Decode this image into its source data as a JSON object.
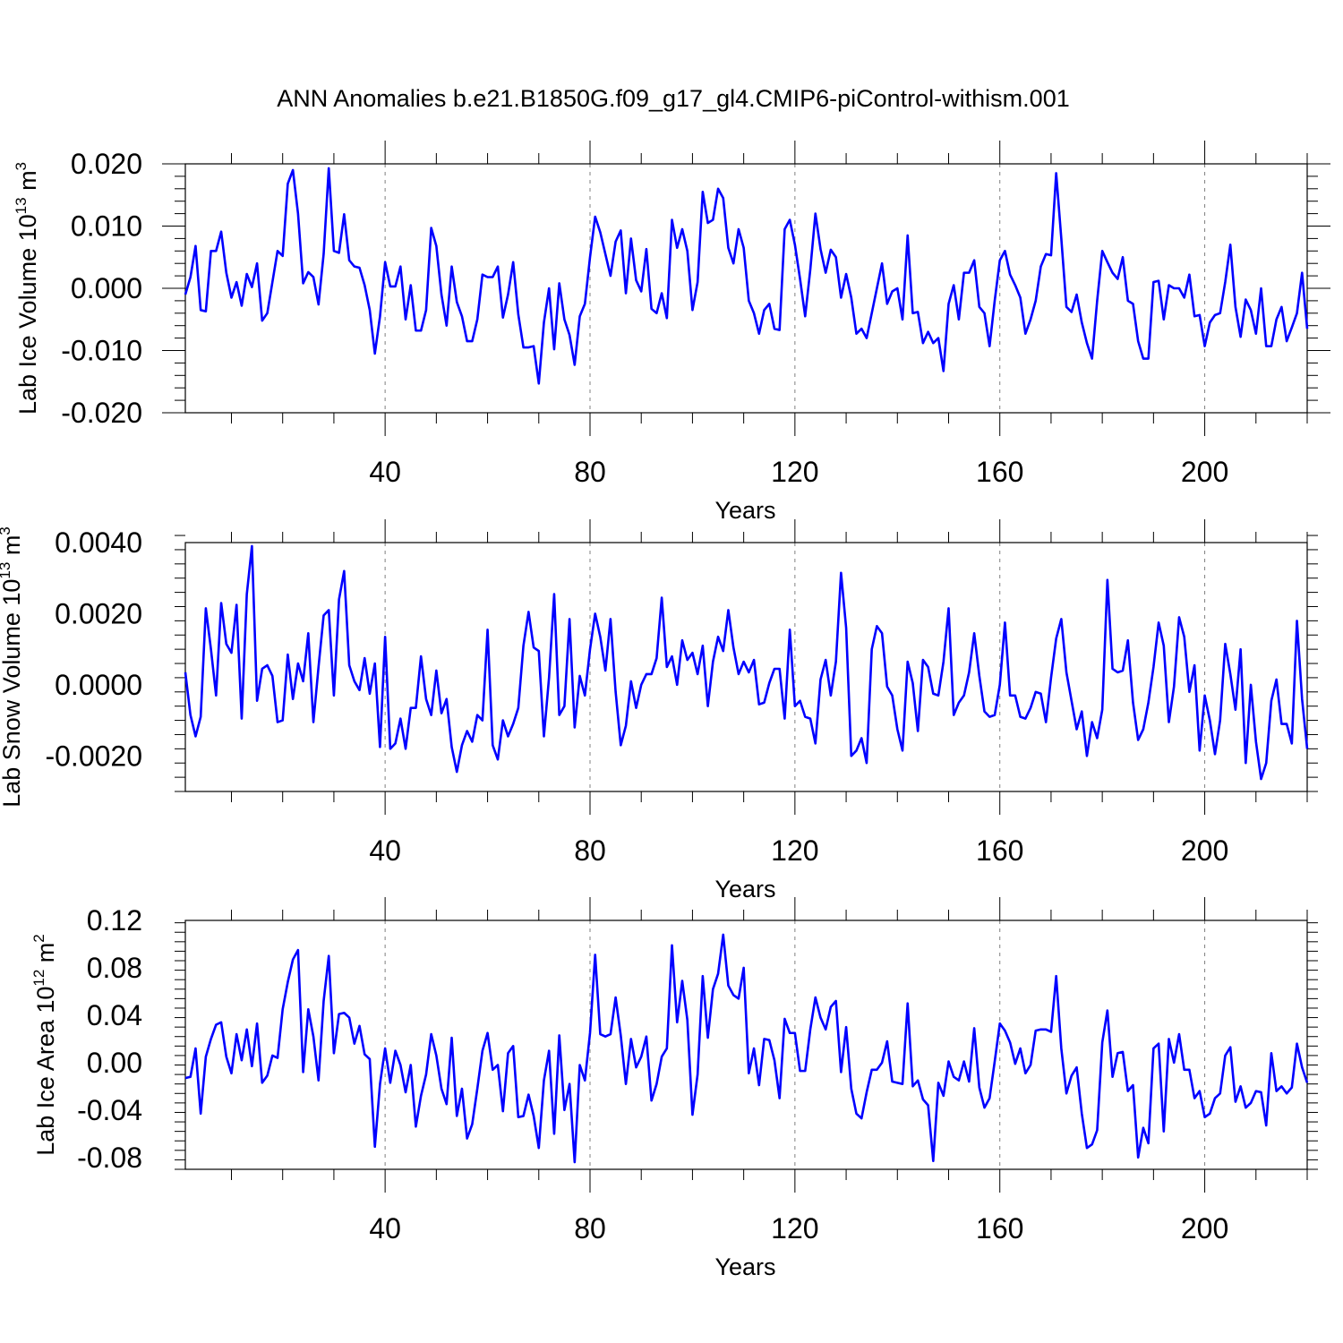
{
  "title": "ANN Anomalies b.e21.B1850G.f09_g17_gl4.CMIP6-piControl-withism.001",
  "colors": {
    "series": "#0000ff",
    "axis": "#000000",
    "grid": "#808080"
  },
  "chart_data": [
    {
      "type": "line",
      "ylabel": "Lab Ice Volume 10^13 m^3",
      "ylabel_main": "Lab Ice Volume 10",
      "ylabel_exp": "13",
      "ylabel_unit": "m",
      "ylabel_unit_exp": "3",
      "xlabel": "Years",
      "xlim": [
        1,
        220
      ],
      "ylim": [
        -0.02,
        0.02
      ],
      "xticks": [
        40,
        80,
        120,
        160,
        200
      ],
      "xtick_labels": [
        "40",
        "80",
        "120",
        "160",
        "200"
      ],
      "yticks": [
        -0.02,
        -0.01,
        0.0,
        0.01,
        0.02
      ],
      "ytick_labels": [
        "-0.020",
        "-0.010",
        "0.000",
        "0.010",
        "0.020"
      ],
      "x_start": 1,
      "values": [
        -0.001,
        0.0018,
        0.0068,
        -0.0035,
        -0.0037,
        0.006,
        0.006,
        0.0091,
        0.0025,
        -0.0015,
        0.001,
        -0.0028,
        0.0023,
        0.0002,
        0.004,
        -0.0052,
        -0.004,
        0.001,
        0.006,
        0.0052,
        0.0168,
        0.019,
        0.012,
        0.0008,
        0.0026,
        0.0018,
        -0.0026,
        0.0055,
        0.0193,
        0.006,
        0.0057,
        0.0119,
        0.0045,
        0.0035,
        0.0033,
        0.0005,
        -0.0035,
        -0.0105,
        -0.0045,
        0.0042,
        0.0003,
        0.0003,
        0.0035,
        -0.005,
        0.0005,
        -0.0068,
        -0.0068,
        -0.0035,
        0.0097,
        0.0068,
        -0.001,
        -0.006,
        0.0035,
        -0.0022,
        -0.0045,
        -0.0085,
        -0.0085,
        -0.005,
        0.0022,
        0.0018,
        0.0018,
        0.0035,
        -0.0047,
        -0.001,
        0.0042,
        -0.0042,
        -0.0095,
        -0.0095,
        -0.0093,
        -0.0153,
        -0.0055,
        0.0,
        -0.0098,
        0.0008,
        -0.005,
        -0.0075,
        -0.0123,
        -0.0045,
        -0.0025,
        0.005,
        0.0115,
        0.009,
        0.0055,
        0.002,
        0.0075,
        0.0093,
        -0.0008,
        0.008,
        0.0013,
        -0.0005,
        0.0063,
        -0.0033,
        -0.004,
        -0.0008,
        -0.0048,
        0.011,
        0.0065,
        0.0095,
        0.006,
        -0.0035,
        0.001,
        0.0155,
        0.0105,
        0.011,
        0.016,
        0.0145,
        0.0065,
        0.004,
        0.0095,
        0.0065,
        -0.002,
        -0.004,
        -0.0073,
        -0.0035,
        -0.0025,
        -0.0065,
        -0.0067,
        0.0095,
        0.011,
        0.007,
        0.0015,
        -0.0045,
        0.003,
        0.012,
        0.0063,
        0.0025,
        0.0062,
        0.005,
        -0.0015,
        0.0023,
        -0.0015,
        -0.0073,
        -0.0065,
        -0.008,
        -0.004,
        0.0,
        0.004,
        -0.0025,
        -0.0005,
        0.0,
        -0.005,
        0.0085,
        -0.004,
        -0.0038,
        -0.0088,
        -0.007,
        -0.0088,
        -0.008,
        -0.0133,
        -0.0025,
        0.0005,
        -0.005,
        0.0025,
        0.0025,
        0.0045,
        -0.003,
        -0.004,
        -0.0093,
        -0.002,
        0.0045,
        0.006,
        0.0022,
        0.0005,
        -0.0015,
        -0.0073,
        -0.005,
        -0.002,
        0.0035,
        0.0055,
        0.0053,
        0.0185,
        0.008,
        -0.003,
        -0.0038,
        -0.001,
        -0.0055,
        -0.0088,
        -0.0113,
        -0.002,
        0.006,
        0.0042,
        0.0025,
        0.0015,
        0.005,
        -0.002,
        -0.0025,
        -0.0085,
        -0.0113,
        -0.0113,
        0.001,
        0.0012,
        -0.005,
        0.0005,
        0.0,
        0.0,
        -0.0015,
        0.0022,
        -0.0045,
        -0.0043,
        -0.0093,
        -0.0055,
        -0.0043,
        -0.004,
        0.001,
        0.007,
        -0.003,
        -0.0078,
        -0.0018,
        -0.0035,
        -0.0073,
        0.0,
        -0.0093,
        -0.0093,
        -0.005,
        -0.003,
        -0.0085,
        -0.0063,
        -0.004,
        0.0025,
        -0.0065
      ]
    },
    {
      "type": "line",
      "ylabel": "Lab Snow Volume 10^13 m^3",
      "ylabel_main": "Lab Snow Volume 10",
      "ylabel_exp": "13",
      "ylabel_unit": "m",
      "ylabel_unit_exp": "3",
      "xlabel": "Years",
      "xlim": [
        1,
        220
      ],
      "ylim": [
        -0.003,
        0.004
      ],
      "xticks": [
        40,
        80,
        120,
        160,
        200
      ],
      "xtick_labels": [
        "40",
        "80",
        "120",
        "160",
        "200"
      ],
      "yticks": [
        -0.002,
        0.0,
        0.002,
        0.004
      ],
      "ytick_labels": [
        "-0.0020",
        "0.0000",
        "0.0020",
        "0.0040"
      ],
      "x_start": 1,
      "values": [
        0.00035,
        -0.00085,
        -0.00145,
        -0.0009,
        0.00215,
        0.001,
        -0.0003,
        0.0023,
        0.00115,
        0.0009,
        0.00225,
        -0.00095,
        0.00255,
        0.0039,
        -0.00045,
        0.00045,
        0.00055,
        0.00025,
        -0.00105,
        -0.001,
        0.00085,
        -0.0004,
        0.0006,
        0.0001,
        0.00145,
        -0.00105,
        0.0005,
        0.00195,
        0.0021,
        -0.0003,
        0.0024,
        0.0032,
        0.00055,
        0.0001,
        -0.00015,
        0.00075,
        -0.00025,
        0.0006,
        -0.00175,
        0.00135,
        -0.0018,
        -0.00165,
        -0.00095,
        -0.0018,
        -0.00065,
        -0.00065,
        0.0008,
        -0.0004,
        -0.00085,
        0.0004,
        -0.0008,
        -0.0004,
        -0.00175,
        -0.00245,
        -0.0017,
        -0.0013,
        -0.0016,
        -0.00085,
        -0.001,
        0.00155,
        -0.0017,
        -0.0021,
        -0.001,
        -0.00145,
        -0.0011,
        -0.00065,
        0.0011,
        0.00205,
        0.00105,
        0.00095,
        -0.00145,
        0.0002,
        0.00255,
        -0.00085,
        -0.0006,
        0.00185,
        -0.0012,
        0.00025,
        -0.0003,
        0.001,
        0.002,
        0.00135,
        0.0004,
        0.00185,
        -0.0002,
        -0.0017,
        -0.00115,
        0.0001,
        -0.00065,
        0.0,
        0.0003,
        0.0003,
        0.00075,
        0.00245,
        0.0005,
        0.0008,
        0.0,
        0.00125,
        0.0007,
        0.0009,
        0.0003,
        0.0011,
        -0.0006,
        0.00065,
        0.00135,
        0.00095,
        0.0021,
        0.00105,
        0.0003,
        0.00065,
        0.00035,
        0.0007,
        -0.00055,
        -0.0005,
        5e-05,
        0.00045,
        0.00045,
        -0.00095,
        0.00155,
        -0.0006,
        -0.00045,
        -0.0009,
        -0.00095,
        -0.00165,
        0.00015,
        0.0007,
        -0.0003,
        0.00065,
        0.00315,
        0.0016,
        -0.002,
        -0.00185,
        -0.0015,
        -0.0022,
        0.001,
        0.00165,
        0.00145,
        -5e-05,
        -0.0003,
        -0.00125,
        -0.00185,
        0.00065,
        5e-05,
        -0.0013,
        0.0007,
        0.0005,
        -0.00025,
        -0.0003,
        0.00065,
        0.00215,
        -0.00085,
        -0.0005,
        -0.0003,
        0.00035,
        0.00145,
        0.00025,
        -0.00075,
        -0.0009,
        -0.00085,
        0.0,
        0.00175,
        -0.0003,
        -0.0003,
        -0.0009,
        -0.00095,
        -0.00065,
        -0.0002,
        -0.00025,
        -0.00105,
        0.0002,
        0.0013,
        0.00185,
        0.00035,
        -0.00045,
        -0.00125,
        -0.00075,
        -0.002,
        -0.00105,
        -0.0015,
        -0.0007,
        0.00295,
        0.00045,
        0.00035,
        0.0004,
        0.00125,
        -0.0005,
        -0.00155,
        -0.00125,
        -0.0005,
        0.0005,
        0.00175,
        0.0011,
        -0.00105,
        -5e-05,
        0.0019,
        0.00135,
        -0.0002,
        0.00055,
        -0.00185,
        -0.0003,
        -0.001,
        -0.00195,
        -0.001,
        0.00115,
        0.0003,
        -0.0007,
        0.001,
        -0.0022,
        0.0,
        -0.0016,
        -0.00265,
        -0.0022,
        -0.00045,
        0.00015,
        -0.0011,
        -0.0011,
        -0.00165,
        0.0018,
        -0.0004,
        -0.0018
      ]
    },
    {
      "type": "line",
      "ylabel": "Lab Ice Area 10^12 m^2",
      "ylabel_main": "Lab Ice Area 10",
      "ylabel_exp": "12",
      "ylabel_unit": "m",
      "ylabel_unit_exp": "2",
      "xlabel": "Years",
      "xlim": [
        1,
        220
      ],
      "ylim": [
        -0.09,
        0.12
      ],
      "xticks": [
        40,
        80,
        120,
        160,
        200
      ],
      "xtick_labels": [
        "40",
        "80",
        "120",
        "160",
        "200"
      ],
      "yticks": [
        -0.08,
        -0.04,
        0.0,
        0.04,
        0.08,
        0.12
      ],
      "ytick_labels": [
        "-0.08",
        "-0.04",
        "0.00",
        "0.04",
        "0.08",
        "0.12"
      ],
      "x_start": 1,
      "values": [
        -0.013,
        -0.012,
        0.012,
        -0.043,
        0.005,
        0.02,
        0.032,
        0.034,
        0.005,
        -0.009,
        0.024,
        0.002,
        0.028,
        -0.003,
        0.033,
        -0.017,
        -0.011,
        0.006,
        0.004,
        0.045,
        0.068,
        0.087,
        0.095,
        -0.008,
        0.045,
        0.022,
        -0.015,
        0.052,
        0.09,
        0.008,
        0.041,
        0.042,
        0.038,
        0.016,
        0.031,
        0.007,
        0.003,
        -0.071,
        -0.018,
        0.012,
        -0.017,
        0.01,
        -0.002,
        -0.025,
        -0.002,
        -0.054,
        -0.028,
        -0.01,
        0.024,
        0.006,
        -0.022,
        -0.035,
        0.021,
        -0.045,
        -0.022,
        -0.064,
        -0.052,
        -0.022,
        0.01,
        0.025,
        -0.006,
        -0.002,
        -0.041,
        0.008,
        0.014,
        -0.046,
        -0.045,
        -0.027,
        -0.045,
        -0.072,
        -0.015,
        0.01,
        -0.06,
        0.023,
        -0.04,
        -0.018,
        -0.084,
        -0.002,
        -0.015,
        0.025,
        0.091,
        0.024,
        0.022,
        0.024,
        0.055,
        0.023,
        -0.018,
        0.02,
        -0.004,
        0.005,
        0.022,
        -0.032,
        -0.018,
        0.005,
        0.012,
        0.099,
        0.034,
        0.069,
        0.036,
        -0.044,
        -0.01,
        0.073,
        0.021,
        0.062,
        0.075,
        0.108,
        0.065,
        0.057,
        0.054,
        0.08,
        -0.009,
        0.012,
        -0.019,
        0.02,
        0.019,
        0.002,
        -0.03,
        0.037,
        0.025,
        0.025,
        -0.007,
        -0.007,
        0.028,
        0.055,
        0.038,
        0.028,
        0.047,
        0.052,
        -0.008,
        0.03,
        -0.022,
        -0.043,
        -0.047,
        -0.025,
        -0.006,
        -0.006,
        0.0,
        0.018,
        -0.016,
        -0.017,
        -0.018,
        0.05,
        -0.02,
        -0.015,
        -0.031,
        -0.036,
        -0.083,
        -0.017,
        -0.028,
        0.001,
        -0.012,
        -0.015,
        0.001,
        -0.016,
        0.029,
        -0.021,
        -0.038,
        -0.03,
        0.001,
        0.033,
        0.027,
        0.017,
        -0.001,
        0.012,
        -0.009,
        -0.002,
        0.027,
        0.028,
        0.028,
        0.026,
        0.073,
        0.012,
        -0.026,
        -0.011,
        -0.004,
        -0.043,
        -0.072,
        -0.069,
        -0.057,
        0.017,
        0.044,
        -0.012,
        0.008,
        0.009,
        -0.024,
        -0.019,
        -0.08,
        -0.055,
        -0.068,
        0.012,
        0.016,
        -0.058,
        0.02,
        0.0,
        0.024,
        -0.006,
        -0.006,
        -0.03,
        -0.024,
        -0.046,
        -0.043,
        -0.03,
        -0.026,
        0.006,
        0.013,
        -0.033,
        -0.02,
        -0.038,
        -0.034,
        -0.024,
        -0.025,
        -0.053,
        0.008,
        -0.024,
        -0.02,
        -0.026,
        -0.021,
        0.016,
        -0.004,
        -0.017
      ]
    }
  ]
}
